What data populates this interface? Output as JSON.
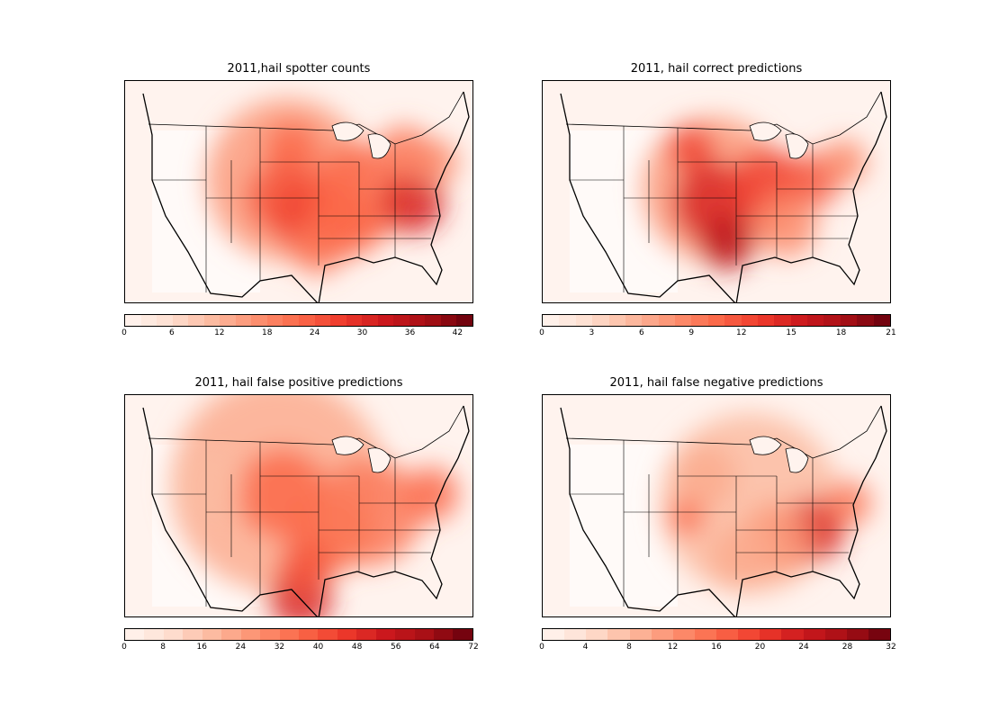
{
  "colormap": [
    "#fff5f0",
    "#fee0d2",
    "#fcbba1",
    "#fc9272",
    "#fb6a4a",
    "#ef3b2c",
    "#cb181d",
    "#a50f15",
    "#67000d"
  ],
  "panels": [
    {
      "title": "2011,hail spotter counts",
      "colorbar": {
        "min": 0,
        "max": 44,
        "levels": 22,
        "ticks": [
          "0",
          "6",
          "12",
          "18",
          "24",
          "30",
          "36",
          "42"
        ]
      }
    },
    {
      "title": "2011, hail correct predictions",
      "colorbar": {
        "min": 0,
        "max": 21,
        "levels": 21,
        "ticks": [
          "0",
          "3",
          "6",
          "9",
          "12",
          "15",
          "18",
          "21"
        ]
      }
    },
    {
      "title": "2011, hail false positive predictions",
      "colorbar": {
        "min": 0,
        "max": 72,
        "levels": 18,
        "ticks": [
          "0",
          "8",
          "16",
          "24",
          "32",
          "40",
          "48",
          "56",
          "64",
          "72"
        ]
      }
    },
    {
      "title": "2011, hail false negative predictions",
      "colorbar": {
        "min": 0,
        "max": 32,
        "levels": 16,
        "ticks": [
          "0",
          "4",
          "8",
          "12",
          "16",
          "20",
          "24",
          "28",
          "32"
        ]
      }
    }
  ]
}
